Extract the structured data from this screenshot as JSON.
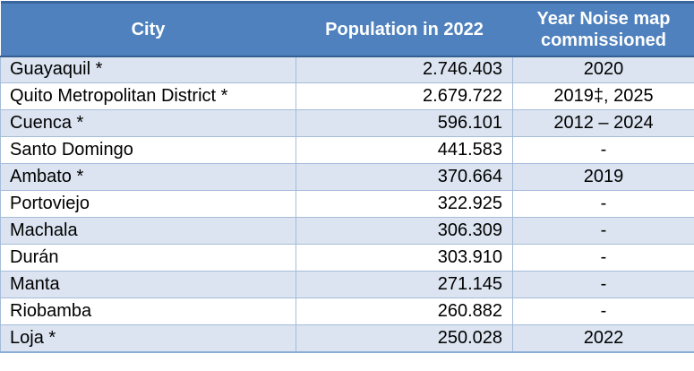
{
  "table": {
    "columns": [
      {
        "label": "City"
      },
      {
        "label": "Population in 2022"
      },
      {
        "label": "Year Noise map commissioned"
      }
    ],
    "rows": [
      {
        "city": "Guayaquil *",
        "population": "2.746.403",
        "year": "2020"
      },
      {
        "city": "Quito Metropolitan District *",
        "population": "2.679.722",
        "year": "2019‡, 2025"
      },
      {
        "city": "Cuenca *",
        "population": "596.101",
        "year": "2012 – 2024"
      },
      {
        "city": "Santo Domingo",
        "population": "441.583",
        "year": "-"
      },
      {
        "city": "Ambato *",
        "population": "370.664",
        "year": "2019"
      },
      {
        "city": "Portoviejo",
        "population": "322.925",
        "year": "-"
      },
      {
        "city": "Machala",
        "population": "306.309",
        "year": "-"
      },
      {
        "city": "Durán",
        "population": "303.910",
        "year": "-"
      },
      {
        "city": "Manta",
        "population": "271.145",
        "year": "-"
      },
      {
        "city": "Riobamba",
        "population": "260.882",
        "year": "-"
      },
      {
        "city": "Loja *",
        "population": "250.028",
        "year": "2022"
      }
    ]
  },
  "colors": {
    "header_bg": "#4e81bd",
    "header_text": "#ffffff",
    "row_shaded": "#dbe4f0",
    "row_plain": "#ffffff",
    "grid_border": "#a6bcd9",
    "top_border": "#3a66a0",
    "header_bottom_border": "#365f91",
    "bottom_border": "#8badd3",
    "text_color": "#000000"
  }
}
